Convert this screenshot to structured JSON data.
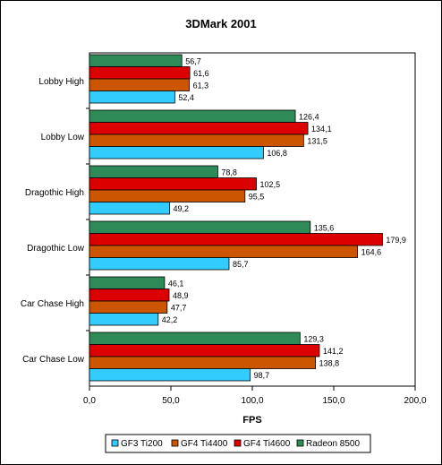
{
  "chart_data": {
    "type": "bar",
    "orientation": "horizontal",
    "title": "3DMark 2001",
    "xlabel": "FPS",
    "ylabel": "",
    "xlim": [
      0,
      200
    ],
    "x_ticks": [
      "0,0",
      "50,0",
      "100,0",
      "150,0",
      "200,0"
    ],
    "grid": false,
    "legend_position": "bottom",
    "categories": [
      "Lobby High",
      "Lobby Low",
      "Dragothic High",
      "Dragothic Low",
      "Car Chase High",
      "Car Chase Low"
    ],
    "series": [
      {
        "name": "GF3 Ti200",
        "color": "#33ccff",
        "values": [
          52.4,
          106.8,
          49.2,
          85.7,
          42.2,
          98.7
        ],
        "labels": [
          "52,4",
          "106,8",
          "49,2",
          "85,7",
          "42,2",
          "98,7"
        ]
      },
      {
        "name": "GF4 Ti4400",
        "color": "#cc5500",
        "values": [
          61.3,
          131.5,
          95.5,
          164.6,
          47.7,
          138.8
        ],
        "labels": [
          "61,3",
          "131,5",
          "95,5",
          "164,6",
          "47,7",
          "138,8"
        ]
      },
      {
        "name": "GF4 Ti4600",
        "color": "#dd0000",
        "values": [
          61.6,
          134.1,
          102.5,
          179.9,
          48.9,
          141.2
        ],
        "labels": [
          "61,6",
          "134,1",
          "102,5",
          "179,9",
          "48,9",
          "141,2"
        ]
      },
      {
        "name": "Radeon 8500",
        "color": "#2e8b57",
        "values": [
          56.7,
          126.4,
          78.8,
          135.6,
          46.1,
          129.3
        ],
        "labels": [
          "56,7",
          "126,4",
          "78,8",
          "135,6",
          "46,1",
          "129,3"
        ]
      }
    ]
  }
}
